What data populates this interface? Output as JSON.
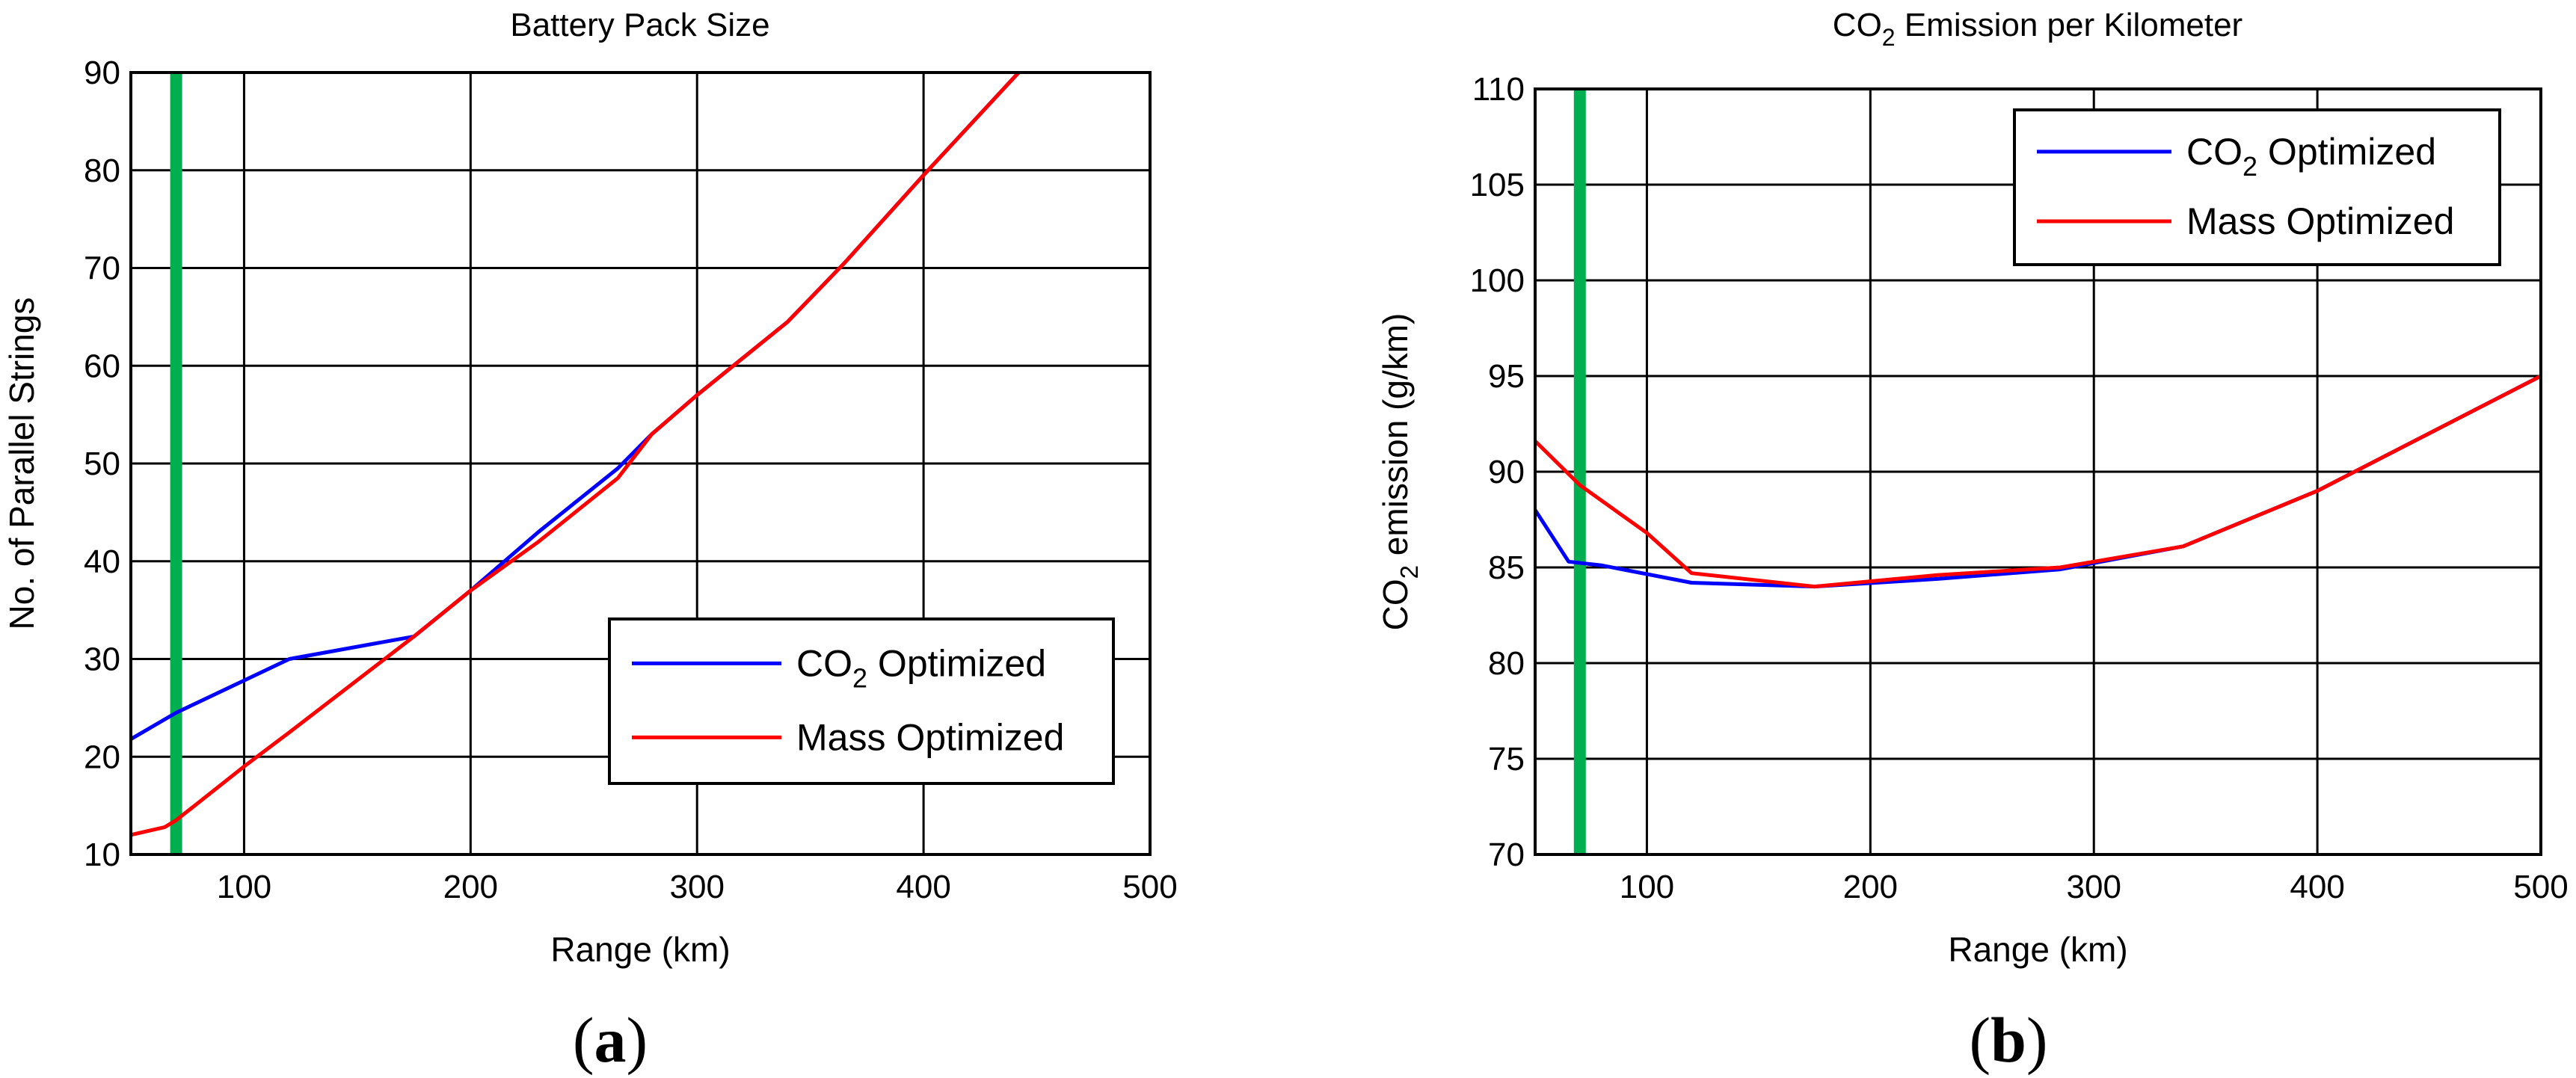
{
  "colors": {
    "co2": "#0000ff",
    "mass": "#ff0000",
    "marker": "#00b050",
    "grid": "#000000"
  },
  "chart_data": [
    {
      "type": "line",
      "panel": "(a)",
      "panel_letter": "a",
      "title": "Battery Pack Size",
      "xlabel": "Range (km)",
      "ylabel": "No. of Parallel Strings",
      "xlim": [
        50,
        500
      ],
      "ylim": [
        10,
        90
      ],
      "xticks": [
        100,
        200,
        300,
        400,
        500
      ],
      "yticks": [
        10,
        20,
        30,
        40,
        50,
        60,
        70,
        80,
        90
      ],
      "grid": true,
      "legend": {
        "position": "lower-right",
        "entries": [
          {
            "base": "CO",
            "sub": "2",
            "rest": " Optimized"
          },
          {
            "base": "Mass Optimized",
            "sub": "",
            "rest": ""
          }
        ]
      },
      "vline": 70,
      "series": [
        {
          "name": "CO2 Optimized",
          "color_key": "co2",
          "x": [
            50,
            70,
            120,
            175,
            200,
            230,
            265,
            280,
            300,
            340,
            365,
            400,
            442
          ],
          "y": [
            21.8,
            24.5,
            30,
            32.3,
            37,
            43,
            49.5,
            53,
            57,
            64.5,
            70.5,
            79.5,
            90
          ]
        },
        {
          "name": "Mass Optimized",
          "color_key": "mass",
          "x": [
            50,
            65,
            70,
            100,
            120,
            175,
            200,
            230,
            265,
            280,
            300,
            340,
            365,
            400,
            442
          ],
          "y": [
            12,
            12.8,
            13.5,
            19,
            22.5,
            32.3,
            37,
            42,
            48.5,
            53,
            57,
            64.5,
            70.5,
            79.5,
            90
          ]
        }
      ]
    },
    {
      "type": "line",
      "panel": "(b)",
      "panel_letter": "b",
      "title": "CO2 Emission per Kilometer",
      "title_parts": {
        "base": "CO",
        "sub": "2",
        "rest": " Emission per Kilometer"
      },
      "xlabel": "Range (km)",
      "ylabel": "CO2 emission (g/km)",
      "ylabel_parts": {
        "base": "CO",
        "sub": "2",
        "rest": " emission (g/km)"
      },
      "xlim": [
        50,
        500
      ],
      "ylim": [
        70,
        110
      ],
      "xticks": [
        100,
        200,
        300,
        400,
        500
      ],
      "yticks": [
        70,
        75,
        80,
        85,
        90,
        95,
        100,
        105,
        110
      ],
      "grid": true,
      "legend": {
        "position": "top-right",
        "entries": [
          {
            "base": "CO",
            "sub": "2",
            "rest": " Optimized"
          },
          {
            "base": "Mass Optimized",
            "sub": "",
            "rest": ""
          }
        ]
      },
      "vline": 70,
      "series": [
        {
          "name": "CO2 Optimized",
          "color_key": "co2",
          "x": [
            50,
            65,
            80,
            120,
            175,
            230,
            285,
            340,
            400,
            500
          ],
          "y": [
            88,
            85.3,
            85.1,
            84.2,
            84,
            84.4,
            84.9,
            86.1,
            89,
            95
          ]
        },
        {
          "name": "Mass Optimized",
          "color_key": "mass",
          "x": [
            50,
            70,
            100,
            120,
            175,
            230,
            285,
            340,
            400,
            500
          ],
          "y": [
            91.6,
            89.3,
            86.8,
            84.7,
            84,
            84.6,
            85,
            86.1,
            89,
            95
          ]
        }
      ]
    }
  ]
}
